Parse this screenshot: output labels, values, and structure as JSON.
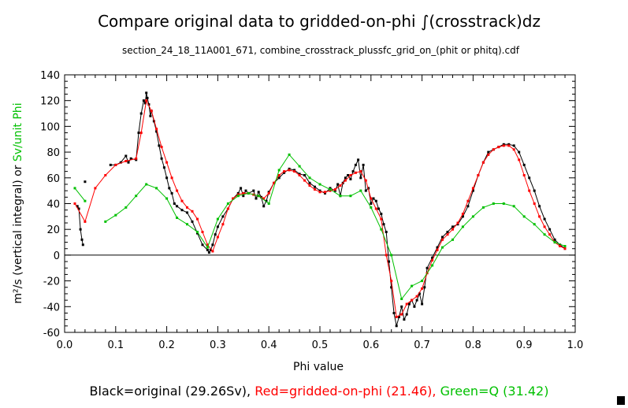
{
  "chart_data": {
    "type": "line",
    "title": "Compare original data to gridded-on-phi ∫(crosstrack)dz",
    "subtitle": "section_24_18_11A001_671, combine_crosstrack_plussfc_grid_on_(phit or phitq).cdf",
    "xlabel": "Phi value",
    "ylabel": {
      "black_part": "m²/s (vertical integral)",
      "connector": " or ",
      "green_part": "Sv/unit Phi"
    },
    "xlim": [
      0.0,
      1.0
    ],
    "ylim": [
      -60,
      140
    ],
    "x_ticks": [
      "0.0",
      "0.1",
      "0.2",
      "0.3",
      "0.4",
      "0.5",
      "0.6",
      "0.7",
      "0.8",
      "0.9",
      "1.0"
    ],
    "y_ticks": [
      "-60",
      "-40",
      "-20",
      "0",
      "20",
      "40",
      "60",
      "80",
      "100",
      "120",
      "140"
    ],
    "zero_line": true,
    "legend": {
      "black": "Black=original (29.26Sv),",
      "red": "Red=gridded-on-phi (21.46),",
      "green": "Green=Q (31.42)"
    },
    "colors": {
      "black": "#000000",
      "red": "#ff0000",
      "green": "#00c000"
    },
    "series": [
      {
        "name": "original",
        "color": "#000000",
        "segments": [
          {
            "x": [
              0.025,
              0.028,
              0.031,
              0.034,
              0.036
            ],
            "y": [
              38,
              36,
              20,
              12,
              8
            ]
          },
          {
            "x": [
              0.04
            ],
            "y": [
              57
            ]
          },
          {
            "x": [
              0.09,
              0.1,
              0.11,
              0.12,
              0.125,
              0.13,
              0.14,
              0.145,
              0.15,
              0.155,
              0.158,
              0.16,
              0.162,
              0.165,
              0.168,
              0.17,
              0.175,
              0.18,
              0.185,
              0.19,
              0.195,
              0.2,
              0.205,
              0.21,
              0.215,
              0.22,
              0.23,
              0.24,
              0.25,
              0.26,
              0.27,
              0.28,
              0.283,
              0.286,
              0.29,
              0.295,
              0.3,
              0.31,
              0.32,
              0.33,
              0.34,
              0.345,
              0.35,
              0.355,
              0.36,
              0.37,
              0.375,
              0.38,
              0.385,
              0.39,
              0.395,
              0.4,
              0.41,
              0.42,
              0.43,
              0.44,
              0.45,
              0.46,
              0.47,
              0.48,
              0.49,
              0.5,
              0.51,
              0.52,
              0.53,
              0.535,
              0.54,
              0.545,
              0.55,
              0.555,
              0.56,
              0.565,
              0.57,
              0.575,
              0.58,
              0.585,
              0.59,
              0.595,
              0.6,
              0.605,
              0.61,
              0.615,
              0.62,
              0.625,
              0.63,
              0.635,
              0.64,
              0.645,
              0.65,
              0.655,
              0.66,
              0.665,
              0.67,
              0.675,
              0.68,
              0.685,
              0.69,
              0.695,
              0.7,
              0.705,
              0.71,
              0.72,
              0.73,
              0.74,
              0.75,
              0.76,
              0.77,
              0.78,
              0.79,
              0.8,
              0.81,
              0.82,
              0.83,
              0.84,
              0.85,
              0.86,
              0.87,
              0.88,
              0.89,
              0.9,
              0.91,
              0.92,
              0.93,
              0.94,
              0.95,
              0.96,
              0.97,
              0.98
            ],
            "y": [
              70,
              70,
              72,
              77,
              72,
              75,
              74,
              95,
              110,
              120,
              118,
              126,
              122,
              117,
              108,
              112,
              104,
              96,
              85,
              75,
              68,
              60,
              52,
              48,
              40,
              38,
              35,
              33,
              26,
              17,
              8,
              4,
              2,
              4,
              8,
              16,
              22,
              30,
              36,
              44,
              48,
              52,
              46,
              50,
              48,
              50,
              44,
              49,
              45,
              38,
              42,
              49,
              56,
              60,
              64,
              67,
              66,
              63,
              62,
              56,
              53,
              50,
              48,
              52,
              50,
              55,
              46,
              56,
              60,
              62,
              59,
              65,
              70,
              74,
              60,
              70,
              50,
              52,
              40,
              44,
              42,
              36,
              32,
              24,
              18,
              -5,
              -25,
              -45,
              -55,
              -48,
              -40,
              -50,
              -46,
              -38,
              -35,
              -40,
              -35,
              -30,
              -38,
              -25,
              -10,
              -2,
              6,
              14,
              18,
              22,
              24,
              30,
              38,
              50,
              62,
              72,
              80,
              82,
              84,
              86,
              86,
              85,
              80,
              70,
              60,
              50,
              38,
              28,
              20,
              12,
              8,
              5
            ]
          }
        ]
      },
      {
        "name": "gridded-on-phi",
        "color": "#ff0000",
        "segments": [
          {
            "x": [
              0.02,
              0.04,
              0.06,
              0.08,
              0.1,
              0.12,
              0.14,
              0.15,
              0.16,
              0.17,
              0.18,
              0.19,
              0.2,
              0.21,
              0.22,
              0.23,
              0.24,
              0.25,
              0.26,
              0.27,
              0.28,
              0.29,
              0.3,
              0.31,
              0.32,
              0.33,
              0.34,
              0.35,
              0.36,
              0.37,
              0.38,
              0.39,
              0.4,
              0.41,
              0.42,
              0.43,
              0.44,
              0.45,
              0.46,
              0.47,
              0.48,
              0.49,
              0.5,
              0.51,
              0.52,
              0.53,
              0.54,
              0.55,
              0.56,
              0.57,
              0.58,
              0.59,
              0.6,
              0.61,
              0.62,
              0.63,
              0.64,
              0.65,
              0.66,
              0.67,
              0.68,
              0.69,
              0.7,
              0.71,
              0.72,
              0.73,
              0.74,
              0.75,
              0.76,
              0.77,
              0.78,
              0.79,
              0.8,
              0.81,
              0.82,
              0.83,
              0.84,
              0.85,
              0.86,
              0.87,
              0.88,
              0.89,
              0.9,
              0.91,
              0.92,
              0.93,
              0.94,
              0.95,
              0.96,
              0.97,
              0.98
            ],
            "y": [
              40,
              26,
              52,
              62,
              70,
              73,
              75,
              95,
              120,
              112,
              98,
              84,
              72,
              60,
              50,
              42,
              37,
              34,
              28,
              18,
              8,
              3,
              14,
              24,
              36,
              44,
              47,
              48,
              48,
              47,
              46,
              44,
              48,
              56,
              62,
              65,
              66,
              65,
              62,
              58,
              54,
              51,
              49,
              49,
              50,
              51,
              54,
              58,
              62,
              64,
              65,
              58,
              44,
              36,
              28,
              0,
              -20,
              -48,
              -46,
              -38,
              -35,
              -32,
              -26,
              -14,
              -4,
              4,
              12,
              16,
              20,
              25,
              32,
              42,
              52,
              62,
              72,
              78,
              82,
              84,
              85,
              85,
              82,
              74,
              62,
              50,
              40,
              30,
              22,
              16,
              10,
              7,
              5
            ]
          }
        ]
      },
      {
        "name": "Q",
        "color": "#00c000",
        "segments": [
          {
            "x": [
              0.02,
              0.04
            ],
            "y": [
              52,
              42
            ]
          },
          {
            "x": [
              0.08,
              0.1,
              0.12,
              0.14,
              0.16,
              0.18,
              0.2,
              0.22,
              0.24,
              0.26,
              0.28,
              0.3,
              0.32,
              0.34,
              0.36,
              0.38,
              0.4,
              0.42,
              0.44,
              0.46,
              0.48,
              0.5,
              0.52,
              0.54,
              0.56,
              0.58,
              0.6,
              0.62,
              0.64,
              0.66,
              0.68,
              0.7,
              0.72,
              0.74,
              0.76,
              0.78,
              0.8,
              0.82,
              0.84,
              0.86,
              0.88,
              0.9,
              0.92,
              0.94,
              0.96,
              0.98
            ],
            "y": [
              26,
              31,
              37,
              46,
              55,
              52,
              44,
              29,
              24,
              18,
              6,
              28,
              40,
              46,
              48,
              46,
              40,
              66,
              78,
              69,
              60,
              55,
              51,
              46,
              46,
              50,
              37,
              20,
              0,
              -34,
              -24,
              -20,
              -8,
              6,
              12,
              22,
              30,
              37,
              40,
              40,
              38,
              30,
              24,
              16,
              10,
              7
            ]
          }
        ]
      }
    ]
  }
}
